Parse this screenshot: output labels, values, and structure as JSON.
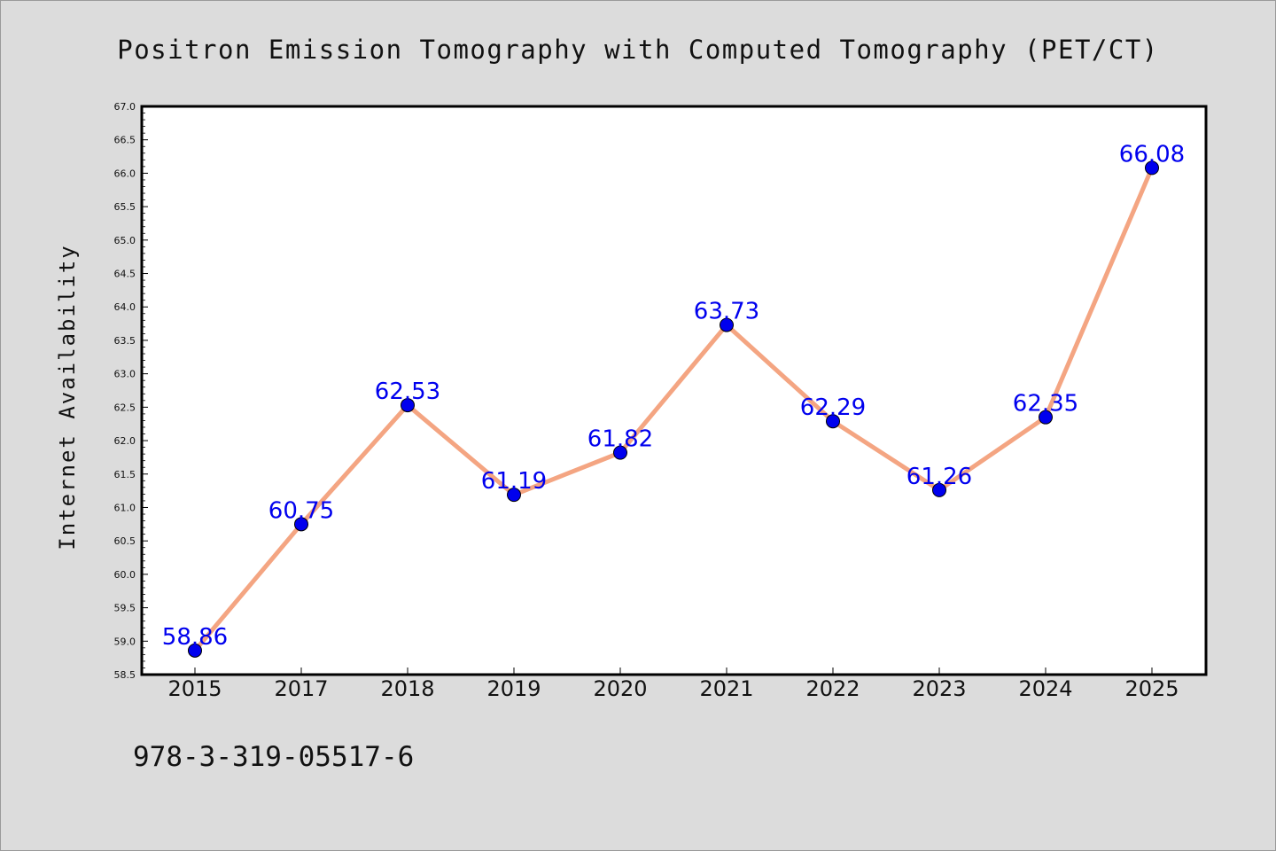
{
  "chart_data": {
    "type": "line",
    "title": "Positron Emission Tomography with Computed Tomography (PET/CT)",
    "xlabel": "",
    "ylabel": "Internet Availability",
    "categories": [
      "2015",
      "2017",
      "2018",
      "2019",
      "2020",
      "2021",
      "2022",
      "2023",
      "2024",
      "2025"
    ],
    "series": [
      {
        "values": [
          58.86,
          60.75,
          62.53,
          61.19,
          61.82,
          63.73,
          62.29,
          61.26,
          62.35,
          66.08
        ],
        "data_labels": [
          "58.86",
          "60.75",
          "62.53",
          "61.19",
          "61.82",
          "63.73",
          "62.29",
          "61.26",
          "62.35",
          "66.08"
        ]
      }
    ],
    "ylim": [
      58.5,
      67.0
    ],
    "yticks": [
      "58.5",
      "59.0",
      "59.5",
      "60.0",
      "60.5",
      "61.0",
      "61.5",
      "62.0",
      "62.5",
      "63.0",
      "63.5",
      "64.0",
      "64.5",
      "65.0",
      "65.5",
      "66.0",
      "66.5",
      "67.0"
    ],
    "grid": false,
    "legend": "none",
    "colors": {
      "line": "#f4a582",
      "marker": "#0000ee",
      "data_label": "#0000ee",
      "plot_background": "#ffffff",
      "figure_background": "#dcdcdc"
    }
  },
  "footer": {
    "isbn": "978-3-319-05517-6"
  }
}
